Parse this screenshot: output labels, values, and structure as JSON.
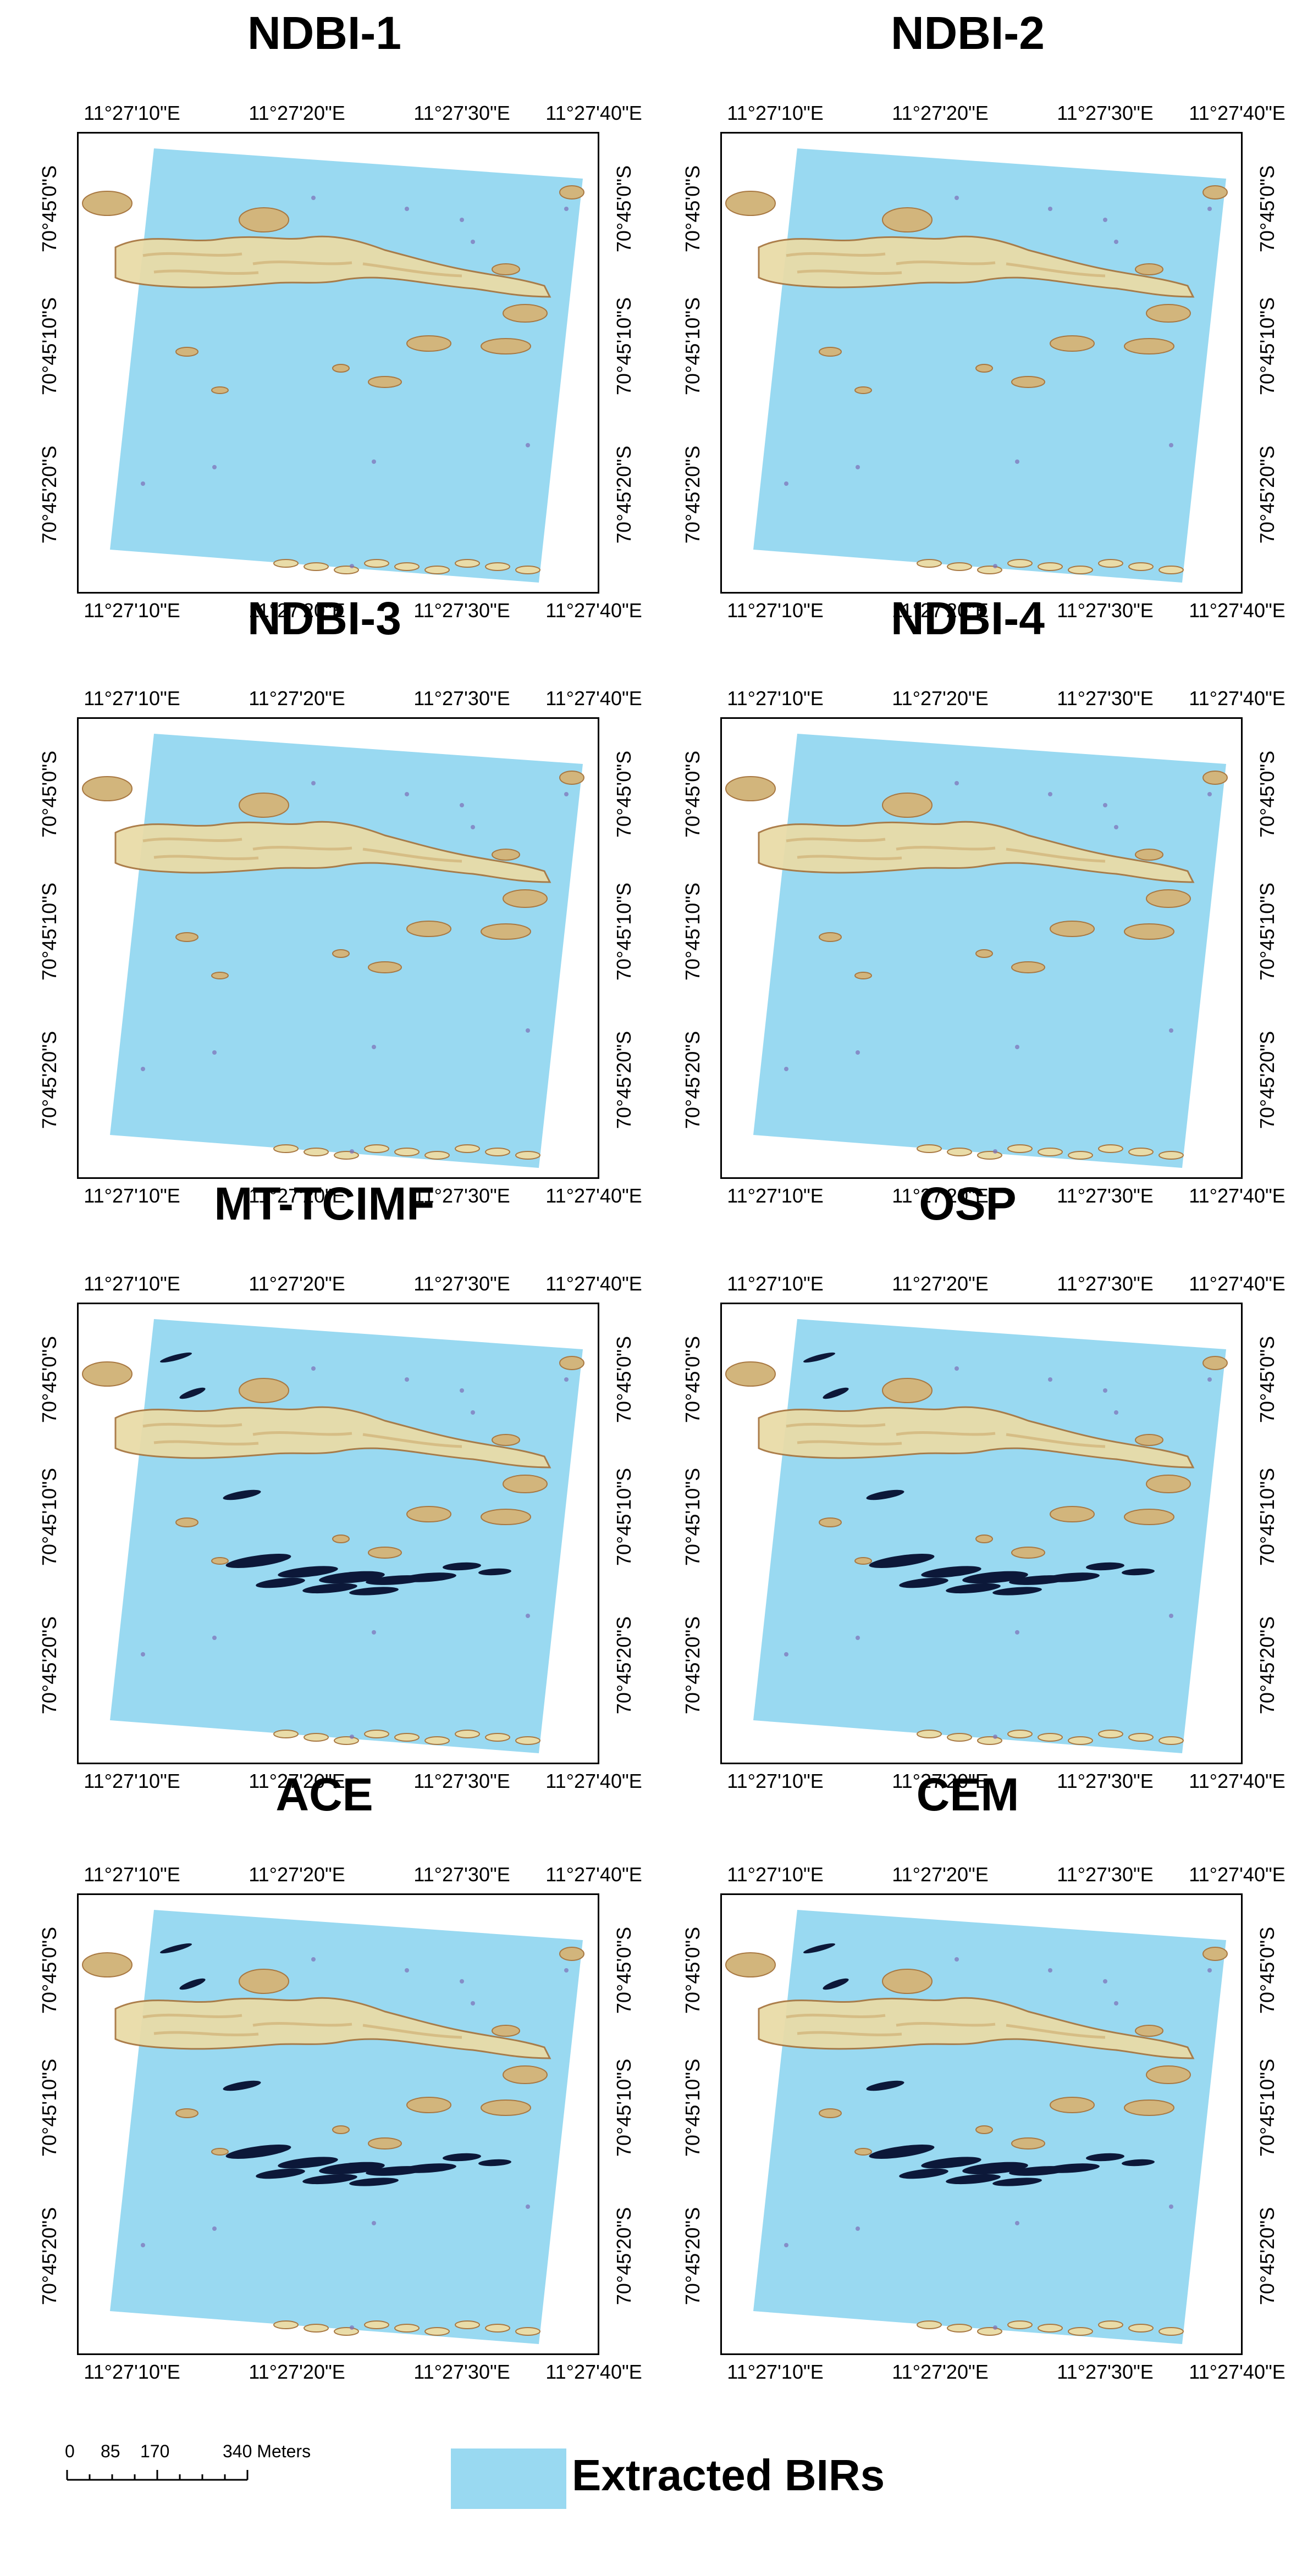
{
  "colors": {
    "birs_fill": "#99d9f1",
    "rock_light": "#e9dca8",
    "rock_mid": "#d2b57c",
    "rock_dark": "#a87842",
    "target_dark": "#0c1839",
    "noise_purple": "#7c6db6"
  },
  "panels": [
    {
      "title": "NDBI-1",
      "dark_targets": false
    },
    {
      "title": "NDBI-2",
      "dark_targets": false
    },
    {
      "title": "NDBI-3",
      "dark_targets": false
    },
    {
      "title": "NDBI-4",
      "dark_targets": false
    },
    {
      "title": "MT-TCIMF",
      "dark_targets": true
    },
    {
      "title": "OSP",
      "dark_targets": true
    },
    {
      "title": "ACE",
      "dark_targets": true
    },
    {
      "title": "CEM",
      "dark_targets": true
    }
  ],
  "grid": {
    "longitude_labels": [
      "11°27'10\"E",
      "11°27'20\"E",
      "11°27'30\"E",
      "11°27'40\"E"
    ],
    "latitude_labels": [
      "70°45'0\"S",
      "70°45'10\"S",
      "70°45'20\"S"
    ]
  },
  "scale_bar": {
    "labels": [
      "0",
      "85",
      "170",
      "340 Meters"
    ]
  },
  "legend": {
    "label": "Extracted BIRs"
  }
}
